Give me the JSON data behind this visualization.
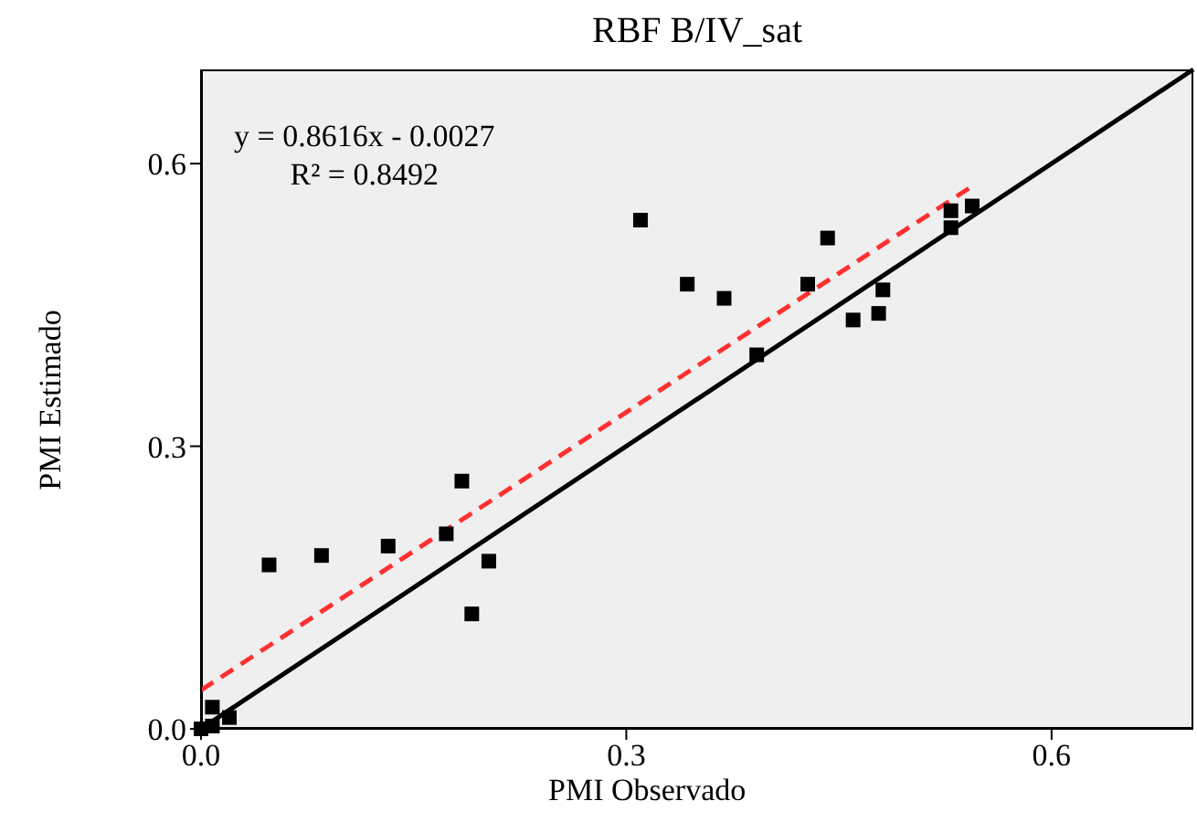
{
  "chart_data": {
    "type": "scatter",
    "title": "RBF B/IV_sat",
    "xlabel": "PMI Observado",
    "ylabel": "PMI Estimado",
    "annotations": [
      "y = 0.8616x - 0.0027",
      "R² = 0.8492"
    ],
    "xlim": [
      0,
      0.7
    ],
    "ylim": [
      0,
      0.7
    ],
    "xticks": [
      {
        "value": 0,
        "label": "0.0"
      },
      {
        "value": 0.3,
        "label": "0.3"
      },
      {
        "value": 0.6,
        "label": "0.6"
      }
    ],
    "yticks": [
      {
        "value": 0,
        "label": "0.0"
      },
      {
        "value": 0.3,
        "label": "0.3"
      },
      {
        "value": 0.6,
        "label": "0.6"
      }
    ],
    "grid": false,
    "legend": false,
    "marker": "square",
    "series": [
      {
        "color": "#000000",
        "x": [
          0,
          0.008,
          0.008,
          0.02,
          0.048,
          0.085,
          0.132,
          0.173,
          0.184,
          0.191,
          0.203,
          0.31,
          0.343,
          0.369,
          0.392,
          0.428,
          0.442,
          0.46,
          0.478,
          0.481,
          0.529,
          0.529,
          0.544
        ],
        "values": [
          0,
          0.003,
          0.023,
          0.012,
          0.174,
          0.184,
          0.194,
          0.207,
          0.263,
          0.122,
          0.178,
          0.54,
          0.472,
          0.457,
          0.397,
          0.472,
          0.521,
          0.434,
          0.441,
          0.466,
          0.55,
          0.532,
          0.555
        ]
      },
      {
        "type": "line",
        "color": "#ff3030",
        "line_style": "dashed",
        "marker": "none",
        "x": [
          0,
          0.545
        ],
        "values": [
          0.041,
          0.577
        ]
      },
      {
        "type": "line",
        "color": "#000000",
        "line_style": "solid",
        "marker": "none",
        "x": [
          0,
          0.7
        ],
        "values": [
          0,
          0.7
        ]
      }
    ]
  }
}
